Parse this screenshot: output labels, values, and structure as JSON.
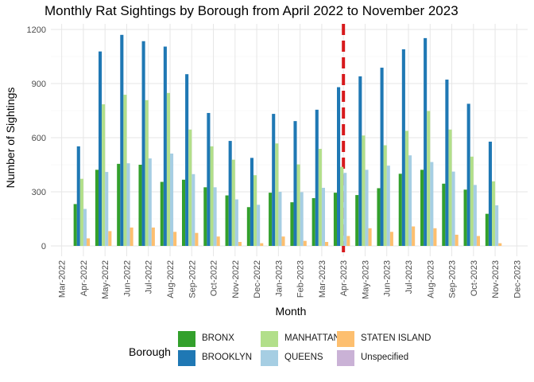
{
  "chart_data": {
    "type": "bar",
    "title": "Monthly Rat Sightings by Borough from April 2022 to November 2023",
    "xlabel": "Month",
    "ylabel": "Number of Sightings",
    "ylim": [
      0,
      1230
    ],
    "yticks": [
      "0",
      "300",
      "600",
      "900",
      "1200"
    ],
    "x_ticks": [
      "Mar-2022",
      "Apr-2022",
      "May-2022",
      "Jun-2022",
      "Jul-2022",
      "Aug-2022",
      "Sep-2022",
      "Oct-2022",
      "Nov-2022",
      "Dec-2022",
      "Jan-2023",
      "Feb-2023",
      "Mar-2023",
      "Apr-2023",
      "May-2023",
      "Jun-2023",
      "Jul-2023",
      "Aug-2023",
      "Sep-2023",
      "Oct-2023",
      "Nov-2023",
      "Dec-2023"
    ],
    "categories": [
      "Apr-2022",
      "May-2022",
      "Jun-2022",
      "Jul-2022",
      "Aug-2022",
      "Sep-2022",
      "Oct-2022",
      "Nov-2022",
      "Dec-2022",
      "Jan-2023",
      "Feb-2023",
      "Mar-2023",
      "Apr-2023",
      "May-2023",
      "Jun-2023",
      "Jul-2023",
      "Aug-2023",
      "Sep-2023",
      "Oct-2023",
      "Nov-2023"
    ],
    "series": [
      {
        "name": "BRONX",
        "color": "#33a02c",
        "values": [
          232,
          422,
          455,
          450,
          355,
          367,
          325,
          280,
          215,
          295,
          242,
          265,
          295,
          282,
          320,
          400,
          422,
          345,
          312,
          178
        ]
      },
      {
        "name": "BROOKLYN",
        "color": "#1f78b4",
        "values": [
          552,
          1078,
          1170,
          1135,
          1105,
          952,
          737,
          582,
          488,
          732,
          692,
          755,
          880,
          940,
          988,
          1090,
          1152,
          922,
          788,
          578
        ]
      },
      {
        "name": "MANHATTAN",
        "color": "#b2df8a",
        "values": [
          372,
          785,
          838,
          808,
          848,
          645,
          552,
          478,
          392,
          568,
          452,
          538,
          438,
          612,
          558,
          638,
          748,
          645,
          495,
          358
        ]
      },
      {
        "name": "QUEENS",
        "color": "#a6cee3",
        "values": [
          205,
          410,
          458,
          485,
          512,
          398,
          325,
          258,
          228,
          300,
          298,
          322,
          405,
          422,
          445,
          502,
          465,
          412,
          338,
          225
        ]
      },
      {
        "name": "STATEN ISLAND",
        "color": "#fdbf6f",
        "values": [
          42,
          82,
          102,
          102,
          78,
          72,
          52,
          22,
          15,
          52,
          28,
          22,
          55,
          98,
          78,
          108,
          98,
          62,
          55,
          15
        ]
      },
      {
        "name": "Unspecified",
        "color": "#cab2d6",
        "values": [
          0,
          0,
          0,
          0,
          0,
          0,
          0,
          0,
          0,
          0,
          0,
          0,
          0,
          0,
          0,
          0,
          0,
          0,
          0,
          0
        ]
      }
    ],
    "reference_line": {
      "at": "Apr-2023",
      "style": "dashed",
      "color": "#d7191c"
    },
    "legend": {
      "title": "Borough",
      "position": "bottom"
    },
    "grid": true
  }
}
